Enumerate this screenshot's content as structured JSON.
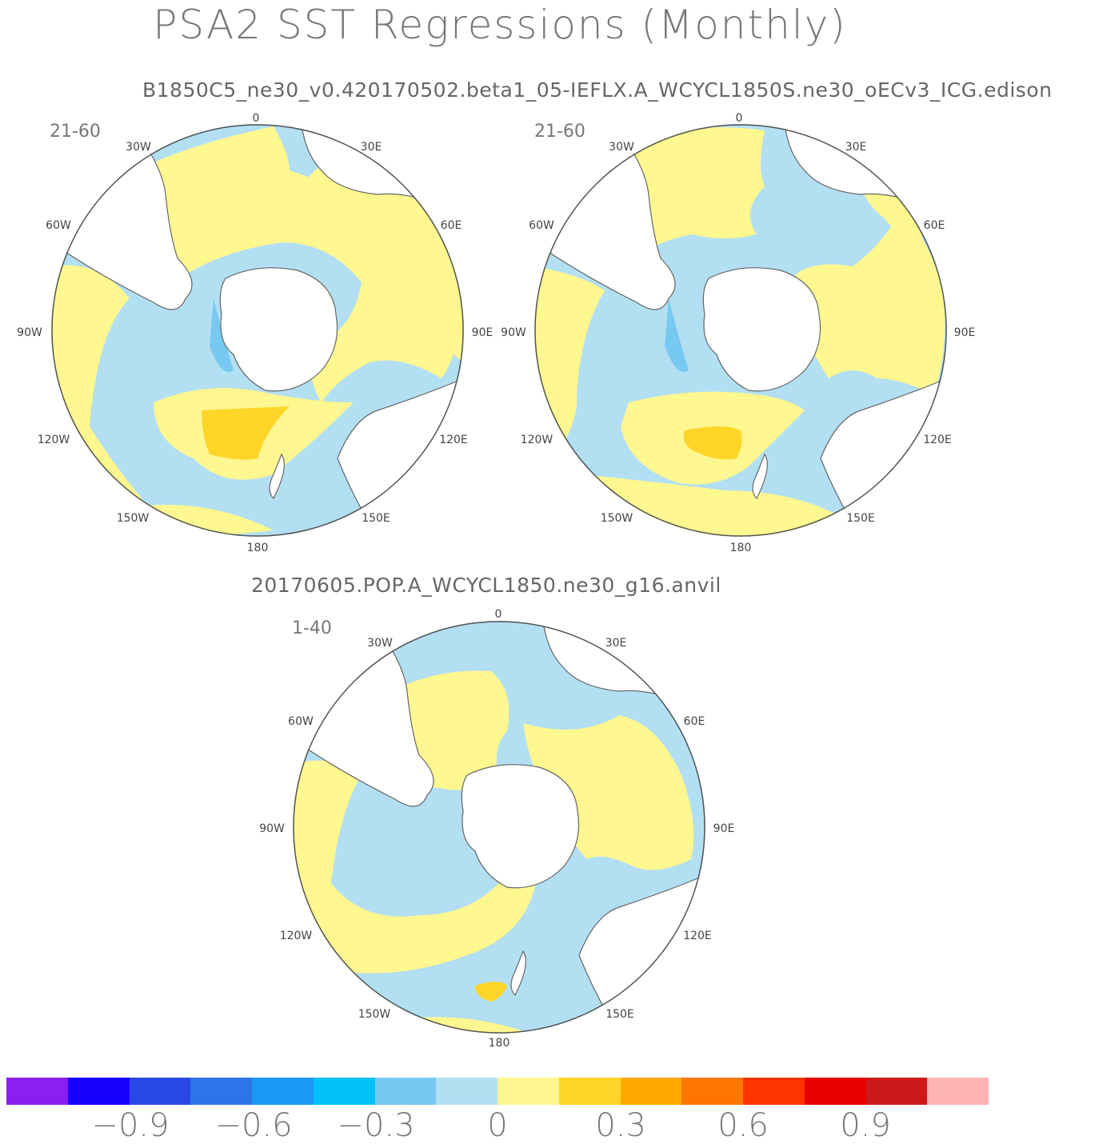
{
  "title": "PSA2 SST Regressions (Monthly)",
  "subtitle_top": "B1850C5_ne30_v0.420170502.beta1_05-IEFLX.A_WCYCL1850S.ne30_oECv3_ICG.edison",
  "subtitle_bottom": "20170605.POP.A_WCYCL1850.ne30_g16.anvil",
  "maps": [
    {
      "period": "21-60"
    },
    {
      "period": "21-60"
    },
    {
      "period": "1-40"
    }
  ],
  "longitude_labels": {
    "lon_0": "0",
    "lon_30e": "30E",
    "lon_60e": "60E",
    "lon_90e": "90E",
    "lon_120e": "120E",
    "lon_150e": "150E",
    "lon_180": "180",
    "lon_150w": "150W",
    "lon_120w": "120W",
    "lon_90w": "90W",
    "lon_60w": "60W",
    "lon_30w": "30W"
  },
  "colorbar": {
    "colors": [
      "#8a1ff0",
      "#1800ff",
      "#2a48e6",
      "#2e73e8",
      "#1b98f5",
      "#00c1fa",
      "#78c9f2",
      "#b3dff2",
      "#fff78f",
      "#ffd528",
      "#ffa800",
      "#ff7700",
      "#ff3300",
      "#e60000",
      "#cc1a1a",
      "#ffb3b3"
    ],
    "tick_labels": [
      "−0.9",
      "−0.6",
      "−0.3",
      "0",
      "0.3",
      "0.6",
      "0.9"
    ]
  },
  "palette": {
    "light_blue": "#b3dff2",
    "mid_blue": "#78c9f2",
    "light_yellow": "#fff78f",
    "gold": "#ffd528",
    "land": "#ffffff",
    "coast": "#666666"
  }
}
